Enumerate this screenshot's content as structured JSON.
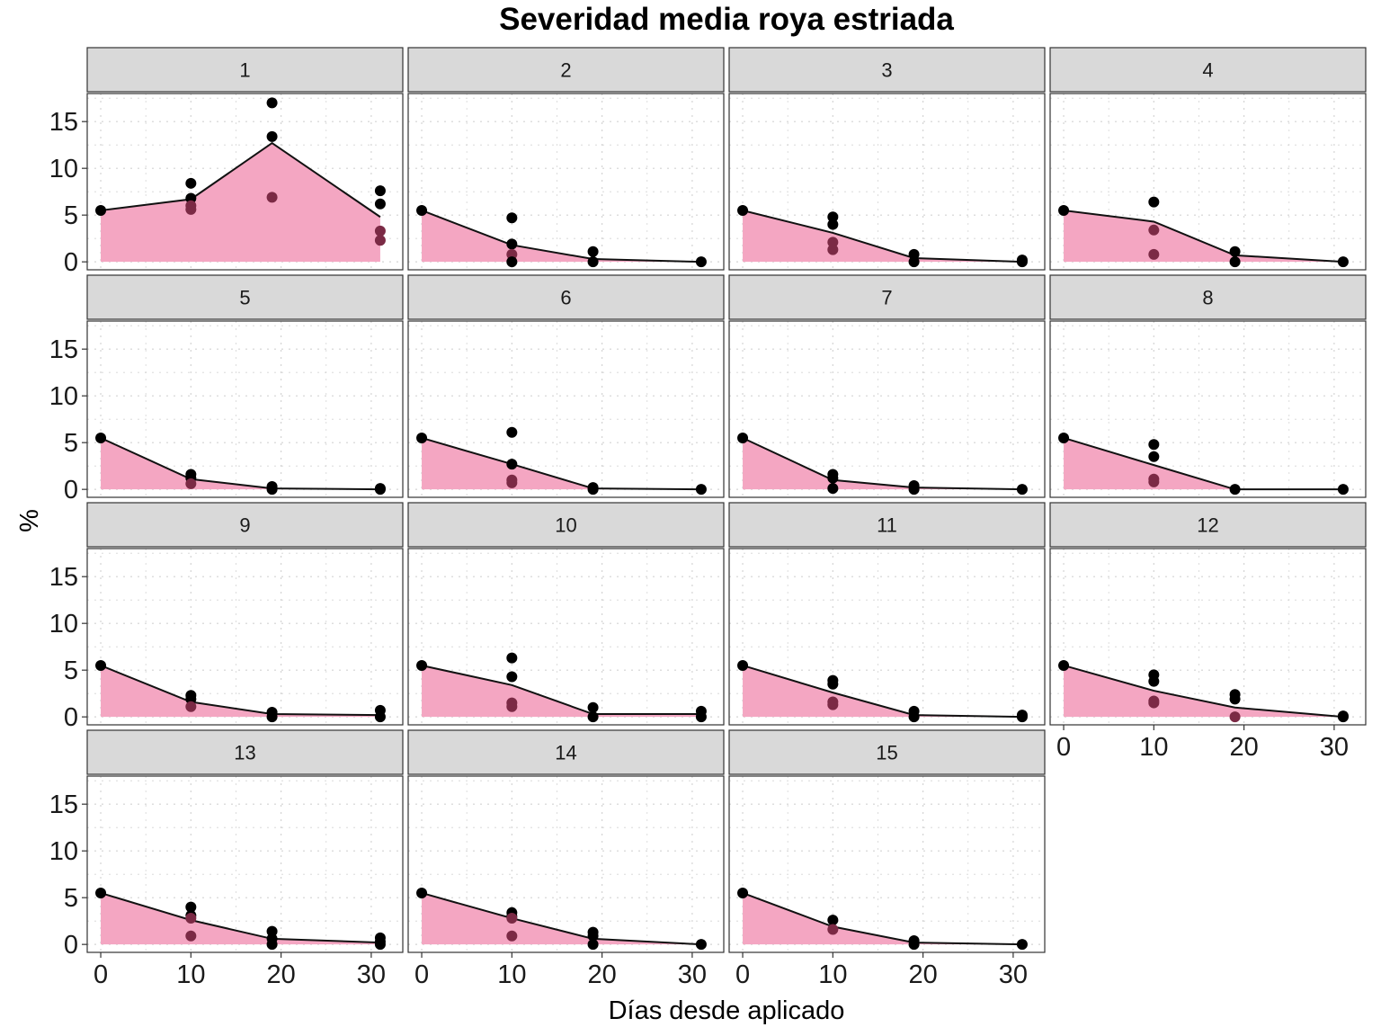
{
  "chart_data": {
    "type": "area",
    "title": "Severidad media roya estriada",
    "xlabel": "Días desde aplicado",
    "ylabel": "%",
    "xlim": [
      -1.5,
      33.5
    ],
    "ylim": [
      -0.85,
      18
    ],
    "x_ticks": [
      0,
      10,
      20,
      30
    ],
    "y_ticks": [
      0,
      5,
      10,
      15
    ],
    "grid": true,
    "ncol": 4,
    "colors": {
      "area_fill": "#f4a6c2",
      "mean_line": "#111111",
      "point_black": "#000000",
      "point_dark": "#7b2a45",
      "panel_bg": "#ffffff",
      "strip_bg": "#d9d9d9",
      "grid": "#d4d4d4"
    },
    "panels": [
      {
        "label": "1",
        "mean": {
          "x": [
            0,
            10,
            19,
            31
          ],
          "y": [
            5.5,
            6.7,
            12.7,
            4.8
          ]
        },
        "points": [
          [
            0,
            5.5,
            "black"
          ],
          [
            10,
            8.4,
            "black"
          ],
          [
            10,
            6.8,
            "black"
          ],
          [
            10,
            6.0,
            "dark"
          ],
          [
            10,
            5.6,
            "dark"
          ],
          [
            19,
            17.0,
            "black"
          ],
          [
            19,
            13.4,
            "black"
          ],
          [
            19,
            6.9,
            "dark"
          ],
          [
            31,
            7.6,
            "black"
          ],
          [
            31,
            6.2,
            "black"
          ],
          [
            31,
            3.3,
            "dark"
          ],
          [
            31,
            2.3,
            "dark"
          ]
        ]
      },
      {
        "label": "2",
        "mean": {
          "x": [
            0,
            10,
            19,
            31
          ],
          "y": [
            5.5,
            1.8,
            0.3,
            0.0
          ]
        },
        "points": [
          [
            0,
            5.5,
            "black"
          ],
          [
            10,
            4.7,
            "black"
          ],
          [
            10,
            1.9,
            "black"
          ],
          [
            10,
            0.8,
            "dark"
          ],
          [
            10,
            0.0,
            "black"
          ],
          [
            19,
            1.1,
            "black"
          ],
          [
            19,
            0.0,
            "black"
          ],
          [
            31,
            0.0,
            "black"
          ]
        ]
      },
      {
        "label": "3",
        "mean": {
          "x": [
            0,
            10,
            19,
            31
          ],
          "y": [
            5.5,
            3.1,
            0.4,
            0.0
          ]
        },
        "points": [
          [
            0,
            5.5,
            "black"
          ],
          [
            10,
            4.8,
            "black"
          ],
          [
            10,
            4.0,
            "black"
          ],
          [
            10,
            2.1,
            "dark"
          ],
          [
            10,
            1.3,
            "dark"
          ],
          [
            19,
            0.8,
            "black"
          ],
          [
            19,
            0.0,
            "black"
          ],
          [
            31,
            0.2,
            "black"
          ],
          [
            31,
            0.0,
            "black"
          ]
        ]
      },
      {
        "label": "4",
        "mean": {
          "x": [
            0,
            10,
            19,
            31
          ],
          "y": [
            5.5,
            4.3,
            0.7,
            0.0
          ]
        },
        "points": [
          [
            0,
            5.5,
            "black"
          ],
          [
            10,
            6.4,
            "black"
          ],
          [
            10,
            3.4,
            "dark"
          ],
          [
            10,
            0.8,
            "dark"
          ],
          [
            19,
            1.1,
            "black"
          ],
          [
            19,
            0.0,
            "black"
          ],
          [
            31,
            0.0,
            "black"
          ]
        ]
      },
      {
        "label": "5",
        "mean": {
          "x": [
            0,
            10,
            19,
            31
          ],
          "y": [
            5.5,
            1.1,
            0.1,
            0.0
          ]
        },
        "points": [
          [
            0,
            5.5,
            "black"
          ],
          [
            10,
            1.6,
            "black"
          ],
          [
            10,
            1.2,
            "black"
          ],
          [
            10,
            0.6,
            "dark"
          ],
          [
            19,
            0.3,
            "black"
          ],
          [
            19,
            0.0,
            "black"
          ],
          [
            31,
            0.1,
            "black"
          ],
          [
            31,
            0.0,
            "black"
          ]
        ]
      },
      {
        "label": "6",
        "mean": {
          "x": [
            0,
            10,
            19,
            31
          ],
          "y": [
            5.5,
            2.7,
            0.1,
            0.0
          ]
        },
        "points": [
          [
            0,
            5.5,
            "black"
          ],
          [
            10,
            6.1,
            "black"
          ],
          [
            10,
            2.7,
            "black"
          ],
          [
            10,
            1.0,
            "dark"
          ],
          [
            10,
            0.7,
            "dark"
          ],
          [
            19,
            0.2,
            "black"
          ],
          [
            19,
            0.0,
            "black"
          ],
          [
            31,
            0.0,
            "black"
          ]
        ]
      },
      {
        "label": "7",
        "mean": {
          "x": [
            0,
            10,
            19,
            31
          ],
          "y": [
            5.5,
            1.0,
            0.2,
            0.0
          ]
        },
        "points": [
          [
            0,
            5.5,
            "black"
          ],
          [
            10,
            1.6,
            "black"
          ],
          [
            10,
            1.2,
            "black"
          ],
          [
            10,
            0.1,
            "black"
          ],
          [
            19,
            0.4,
            "black"
          ],
          [
            19,
            0.0,
            "black"
          ],
          [
            31,
            0.0,
            "black"
          ]
        ]
      },
      {
        "label": "8",
        "mean": {
          "x": [
            0,
            10,
            19,
            31
          ],
          "y": [
            5.5,
            2.6,
            0.0,
            0.0
          ]
        },
        "points": [
          [
            0,
            5.5,
            "black"
          ],
          [
            10,
            4.8,
            "black"
          ],
          [
            10,
            3.5,
            "black"
          ],
          [
            10,
            1.1,
            "dark"
          ],
          [
            10,
            0.8,
            "dark"
          ],
          [
            19,
            0.0,
            "black"
          ],
          [
            31,
            0.0,
            "black"
          ]
        ]
      },
      {
        "label": "9",
        "mean": {
          "x": [
            0,
            10,
            19,
            31
          ],
          "y": [
            5.5,
            1.6,
            0.3,
            0.2
          ]
        },
        "points": [
          [
            0,
            5.5,
            "black"
          ],
          [
            10,
            2.3,
            "black"
          ],
          [
            10,
            1.9,
            "black"
          ],
          [
            10,
            1.1,
            "dark"
          ],
          [
            19,
            0.5,
            "black"
          ],
          [
            19,
            0.0,
            "black"
          ],
          [
            31,
            0.7,
            "black"
          ],
          [
            31,
            0.0,
            "black"
          ]
        ]
      },
      {
        "label": "10",
        "mean": {
          "x": [
            0,
            10,
            19,
            31
          ],
          "y": [
            5.5,
            3.4,
            0.3,
            0.3
          ]
        },
        "points": [
          [
            0,
            5.5,
            "black"
          ],
          [
            10,
            6.3,
            "black"
          ],
          [
            10,
            4.3,
            "black"
          ],
          [
            10,
            1.5,
            "dark"
          ],
          [
            10,
            1.1,
            "dark"
          ],
          [
            19,
            1.0,
            "black"
          ],
          [
            19,
            0.0,
            "black"
          ],
          [
            31,
            0.6,
            "black"
          ],
          [
            31,
            0.0,
            "black"
          ]
        ]
      },
      {
        "label": "11",
        "mean": {
          "x": [
            0,
            10,
            19,
            31
          ],
          "y": [
            5.5,
            2.6,
            0.2,
            0.0
          ]
        },
        "points": [
          [
            0,
            5.5,
            "black"
          ],
          [
            10,
            3.9,
            "black"
          ],
          [
            10,
            3.5,
            "black"
          ],
          [
            10,
            1.6,
            "dark"
          ],
          [
            10,
            1.3,
            "dark"
          ],
          [
            19,
            0.6,
            "black"
          ],
          [
            19,
            0.0,
            "black"
          ],
          [
            31,
            0.2,
            "black"
          ],
          [
            31,
            0.0,
            "black"
          ]
        ]
      },
      {
        "label": "12",
        "mean": {
          "x": [
            0,
            10,
            19,
            31
          ],
          "y": [
            5.5,
            2.8,
            1.0,
            0.0
          ]
        },
        "points": [
          [
            0,
            5.5,
            "black"
          ],
          [
            10,
            4.5,
            "black"
          ],
          [
            10,
            3.8,
            "black"
          ],
          [
            10,
            1.7,
            "dark"
          ],
          [
            10,
            1.5,
            "dark"
          ],
          [
            19,
            2.4,
            "black"
          ],
          [
            19,
            1.9,
            "black"
          ],
          [
            19,
            0.0,
            "dark"
          ],
          [
            31,
            0.1,
            "black"
          ],
          [
            31,
            0.0,
            "black"
          ]
        ]
      },
      {
        "label": "13",
        "mean": {
          "x": [
            0,
            10,
            19,
            31
          ],
          "y": [
            5.5,
            2.6,
            0.6,
            0.2
          ]
        },
        "points": [
          [
            0,
            5.5,
            "black"
          ],
          [
            10,
            4.0,
            "black"
          ],
          [
            10,
            3.1,
            "black"
          ],
          [
            10,
            2.8,
            "dark"
          ],
          [
            10,
            0.9,
            "dark"
          ],
          [
            19,
            1.4,
            "black"
          ],
          [
            19,
            0.6,
            "black"
          ],
          [
            19,
            0.0,
            "black"
          ],
          [
            31,
            0.7,
            "black"
          ],
          [
            31,
            0.3,
            "black"
          ],
          [
            31,
            0.0,
            "black"
          ]
        ]
      },
      {
        "label": "14",
        "mean": {
          "x": [
            0,
            10,
            19,
            31
          ],
          "y": [
            5.5,
            2.8,
            0.6,
            0.0
          ]
        },
        "points": [
          [
            0,
            5.5,
            "black"
          ],
          [
            10,
            3.4,
            "black"
          ],
          [
            10,
            3.0,
            "black"
          ],
          [
            10,
            2.8,
            "dark"
          ],
          [
            10,
            0.9,
            "dark"
          ],
          [
            19,
            1.3,
            "black"
          ],
          [
            19,
            0.9,
            "black"
          ],
          [
            19,
            0.0,
            "black"
          ],
          [
            31,
            0.0,
            "black"
          ]
        ]
      },
      {
        "label": "15",
        "mean": {
          "x": [
            0,
            10,
            19,
            31
          ],
          "y": [
            5.5,
            1.9,
            0.2,
            0.0
          ]
        },
        "points": [
          [
            0,
            5.5,
            "black"
          ],
          [
            10,
            2.6,
            "black"
          ],
          [
            10,
            1.6,
            "dark"
          ],
          [
            19,
            0.4,
            "black"
          ],
          [
            19,
            0.0,
            "black"
          ],
          [
            31,
            0.0,
            "black"
          ]
        ]
      }
    ]
  }
}
